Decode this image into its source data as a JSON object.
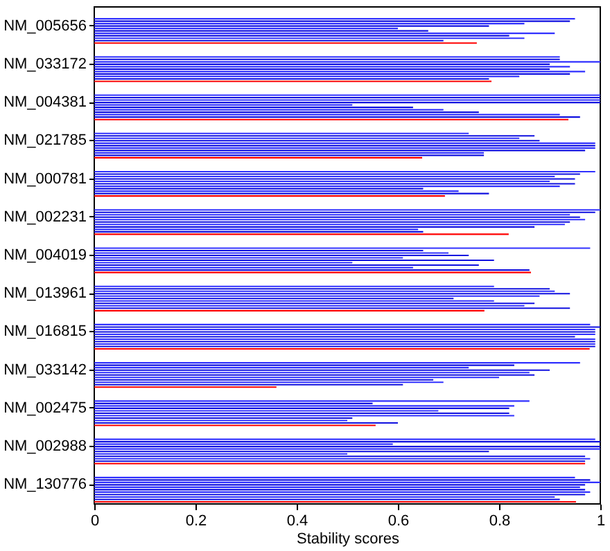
{
  "chart_data": {
    "type": "bar",
    "orientation": "horizontal",
    "xlabel": "Stability scores",
    "categories": [
      "NM_005656",
      "NM_033172",
      "NM_004381",
      "NM_021785",
      "NM_000781",
      "NM_002231",
      "NM_004019",
      "NM_013961",
      "NM_016815",
      "NM_033142",
      "NM_002475",
      "NM_002988",
      "NM_130776"
    ],
    "series": [
      {
        "color": "#3030ff",
        "values": [
          0.95,
          0.92,
          1.0,
          0.74,
          0.99,
          1.0,
          0.98,
          0.79,
          0.98,
          0.96,
          0.86,
          0.99,
          0.95
        ]
      },
      {
        "color": "#1010e0",
        "values": [
          0.94,
          0.92,
          1.0,
          0.87,
          0.96,
          0.99,
          0.65,
          0.9,
          1.0,
          0.83,
          0.55,
          1.0,
          0.98
        ]
      },
      {
        "color": "#3030ff",
        "values": [
          0.85,
          1.0,
          1.0,
          0.84,
          0.91,
          0.94,
          0.7,
          0.91,
          0.99,
          0.74,
          0.83,
          0.59,
          1.0
        ]
      },
      {
        "color": "#1010e0",
        "values": [
          0.78,
          0.9,
          1.0,
          0.88,
          0.95,
          0.96,
          0.74,
          0.94,
          0.99,
          0.9,
          0.82,
          1.0,
          0.97
        ]
      },
      {
        "color": "#3030ff",
        "values": [
          0.6,
          0.94,
          0.51,
          0.99,
          0.9,
          0.97,
          0.61,
          0.88,
          0.99,
          0.86,
          0.68,
          1.0,
          0.96
        ]
      },
      {
        "color": "#1010e0",
        "values": [
          0.66,
          0.9,
          0.63,
          0.99,
          0.95,
          0.94,
          0.79,
          0.71,
          0.95,
          0.87,
          0.82,
          0.78,
          0.97
        ]
      },
      {
        "color": "#3030ff",
        "values": [
          0.91,
          0.97,
          0.69,
          0.99,
          0.92,
          0.93,
          0.51,
          0.79,
          0.99,
          0.8,
          0.83,
          0.5,
          0.98
        ]
      },
      {
        "color": "#1010e0",
        "values": [
          0.82,
          0.94,
          0.76,
          0.97,
          0.65,
          0.87,
          0.76,
          0.87,
          0.99,
          0.67,
          0.51,
          0.97,
          0.97
        ]
      },
      {
        "color": "#3030ff",
        "values": [
          0.85,
          0.84,
          0.92,
          0.77,
          0.72,
          0.64,
          0.63,
          0.85,
          0.99,
          0.69,
          0.5,
          0.98,
          0.91
        ]
      },
      {
        "color": "#1010e0",
        "values": [
          0.69,
          0.78,
          0.96,
          0.77,
          0.78,
          0.65,
          0.86,
          0.94,
          0.99,
          0.61,
          0.6,
          0.97,
          0.92
        ]
      },
      {
        "color": "#ff0000",
        "values": [
          0.756,
          0.785,
          0.937,
          0.648,
          0.693,
          0.819,
          0.863,
          0.771,
          0.979,
          0.36,
          0.556,
          0.97,
          0.952
        ]
      }
    ],
    "xlim": [
      0,
      1
    ],
    "xticks": [
      0,
      0.2,
      0.4,
      0.6,
      0.8,
      1
    ]
  }
}
